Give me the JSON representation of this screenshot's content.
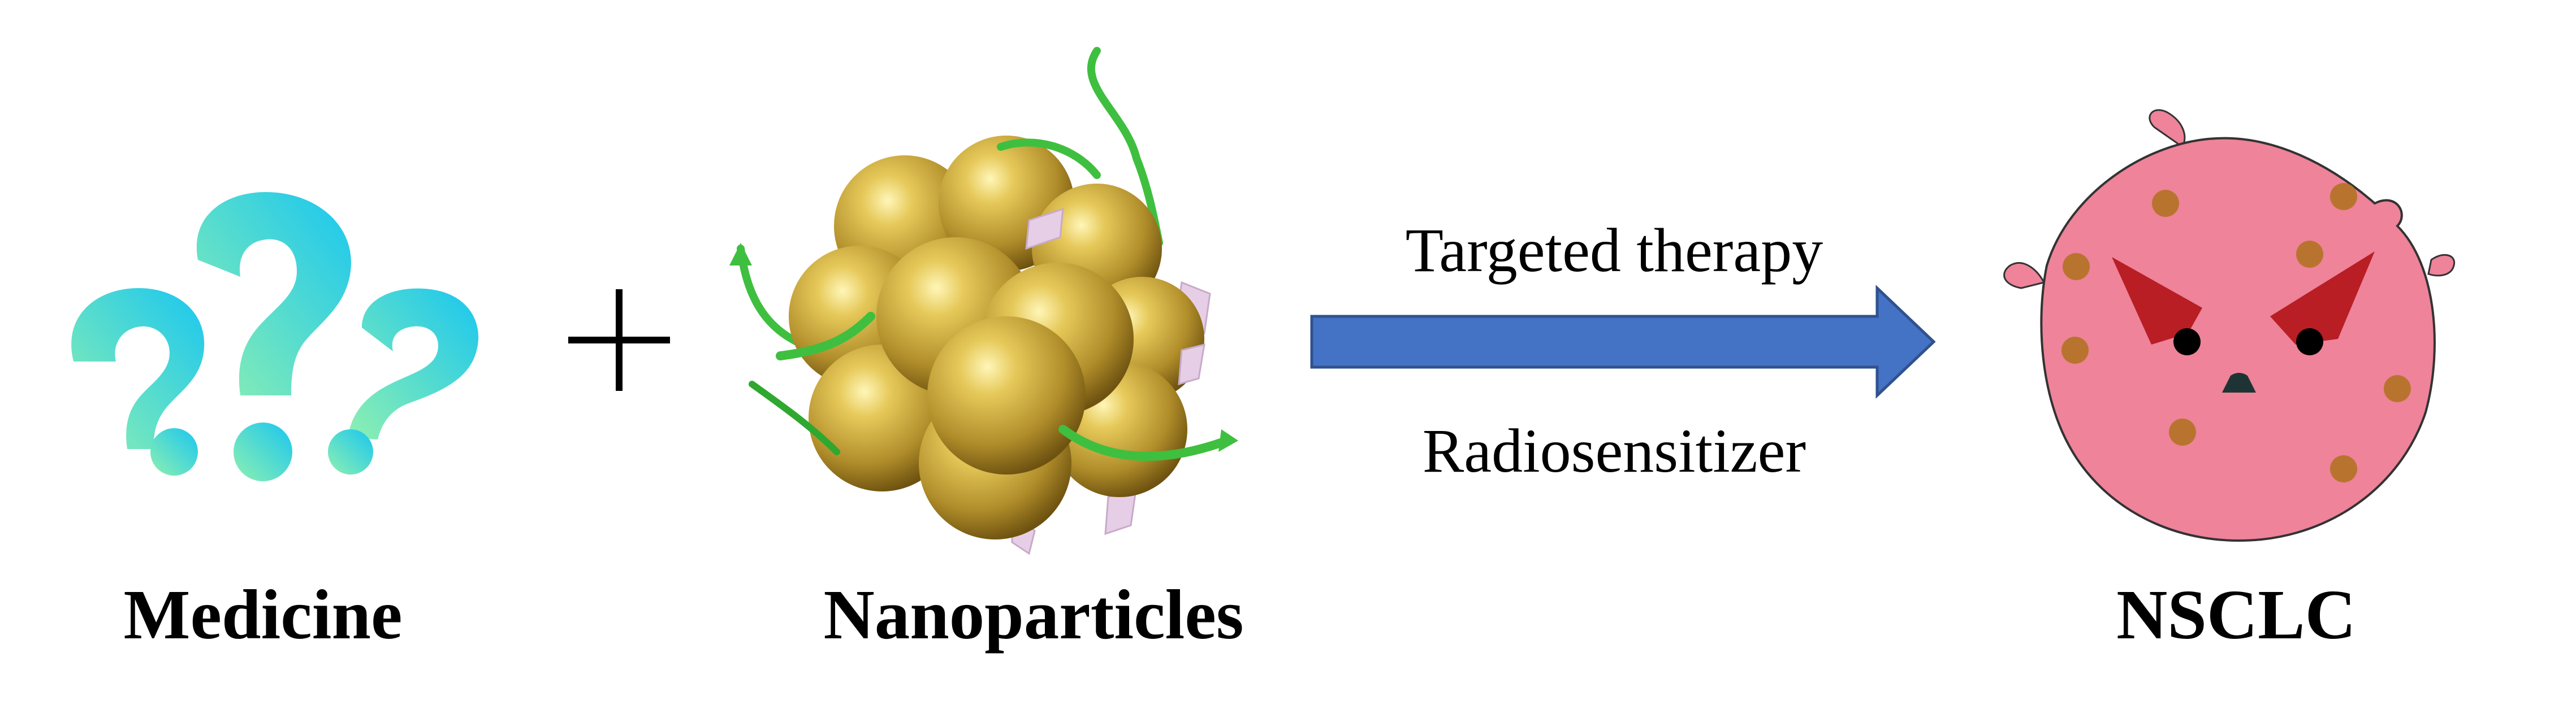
{
  "labels": {
    "medicine": "Medicine",
    "plus": "+",
    "nanoparticles": "Nanoparticles",
    "arrow_top": "Targeted therapy",
    "arrow_bottom": "Radiosensitizer",
    "target": "NSCLC"
  },
  "icons": {
    "medicine": "question-marks-icon",
    "nanoparticles": "nanoparticle-cluster-icon",
    "arrow": "right-arrow-icon",
    "target": "angry-tumor-cell-icon"
  },
  "colors": {
    "question_gradient_start": "#8ff0b0",
    "question_gradient_end": "#19c6f0",
    "gold_light": "#f2e27a",
    "gold_mid": "#c9a83a",
    "gold_dark": "#8a6a18",
    "ribbon_green": "#3fbf3f",
    "ribbon_pink": "#e6cfe6",
    "arrow_fill": "#4472c4",
    "arrow_stroke": "#2f528f",
    "cell_fill": "#ee8399",
    "cell_stroke": "#333333",
    "cell_dots": "#b8742e",
    "cell_eyes": "#b81e24"
  }
}
